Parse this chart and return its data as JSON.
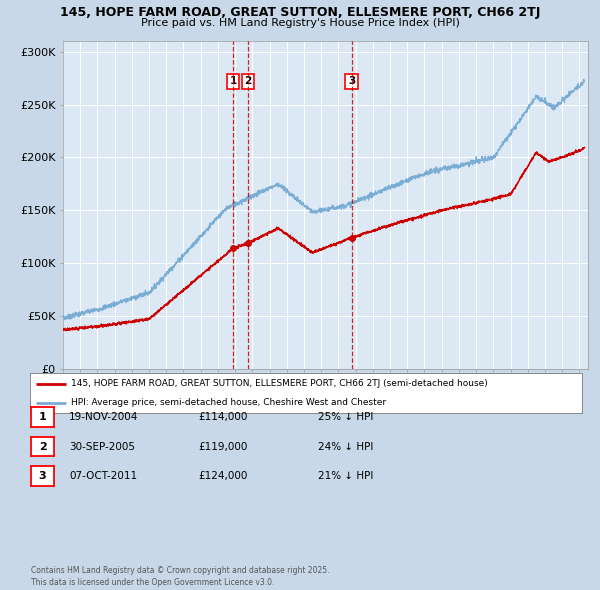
{
  "title_line1": "145, HOPE FARM ROAD, GREAT SUTTON, ELLESMERE PORT, CH66 2TJ",
  "title_line2": "Price paid vs. HM Land Registry's House Price Index (HPI)",
  "bg_color": "#c8d8e8",
  "plot_bg_color": "#dce9f5",
  "grid_color": "#ffffff",
  "hpi_color": "#7aadd4",
  "price_color": "#cc0000",
  "vline_color": "#cc0000",
  "ylim": [
    0,
    310000
  ],
  "yticks": [
    0,
    50000,
    100000,
    150000,
    200000,
    250000,
    300000
  ],
  "ytick_labels": [
    "£0",
    "£50K",
    "£100K",
    "£150K",
    "£200K",
    "£250K",
    "£300K"
  ],
  "xstart": 1995,
  "xend": 2025.5,
  "transactions": [
    {
      "num": 1,
      "date": "19-NOV-2004",
      "year": 2004.88,
      "price": 114000,
      "pct": "25%",
      "direction": "↓"
    },
    {
      "num": 2,
      "date": "30-SEP-2005",
      "year": 2005.75,
      "price": 119000,
      "pct": "24%",
      "direction": "↓"
    },
    {
      "num": 3,
      "date": "07-OCT-2011",
      "year": 2011.77,
      "price": 124000,
      "pct": "21%",
      "direction": "↓"
    }
  ],
  "legend_line1": "145, HOPE FARM ROAD, GREAT SUTTON, ELLESMERE PORT, CH66 2TJ (semi-detached house)",
  "legend_line2": "HPI: Average price, semi-detached house, Cheshire West and Chester",
  "footer_line1": "Contains HM Land Registry data © Crown copyright and database right 2025.",
  "footer_line2": "This data is licensed under the Open Government Licence v3.0."
}
